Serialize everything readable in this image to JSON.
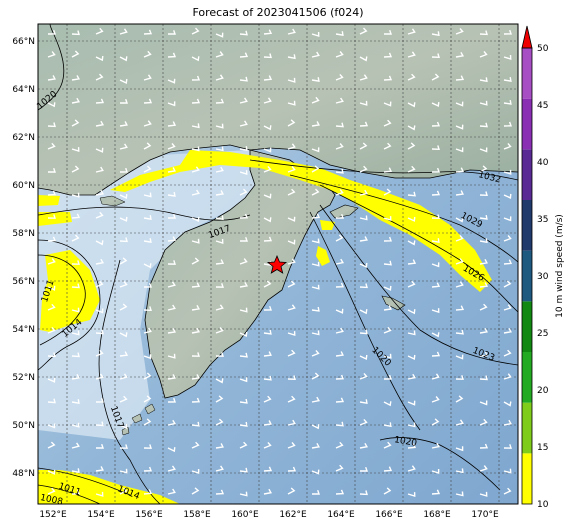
{
  "map": {
    "title": "Forecast of 2023041506 (f024)",
    "lon_ticks": [
      "152°E",
      "154°E",
      "156°E",
      "158°E",
      "160°E",
      "162°E",
      "164°E",
      "166°E",
      "168°E",
      "170°E"
    ],
    "lat_ticks": [
      "48°N",
      "50°N",
      "52°N",
      "54°N",
      "56°N",
      "58°N",
      "60°N",
      "62°N",
      "64°N",
      "66°N"
    ],
    "contour_labels": [
      "1020",
      "1032",
      "1029",
      "1026",
      "1023",
      "1020",
      "1020",
      "1017",
      "1017",
      "1011",
      "1014",
      "1011",
      "1014",
      "1008"
    ],
    "marker": "red-star",
    "colors": {
      "ocean": "#8fb3d6",
      "land": "#9fb7a8",
      "shading_yellow": "#ffff00",
      "star": "#ff0000"
    }
  },
  "colorbar": {
    "label": "10 m wind speed (m/s)",
    "ticks": [
      "10",
      "15",
      "20",
      "25",
      "30",
      "35",
      "40",
      "45",
      "50"
    ],
    "segment_colors": [
      "#ffff00",
      "#7fcc1a",
      "#22aa22",
      "#118811",
      "#1e5a80",
      "#1f3a6b",
      "#5a2a94",
      "#8a2fb4",
      "#a84ec4"
    ],
    "extend_color": "#ee0000"
  }
}
